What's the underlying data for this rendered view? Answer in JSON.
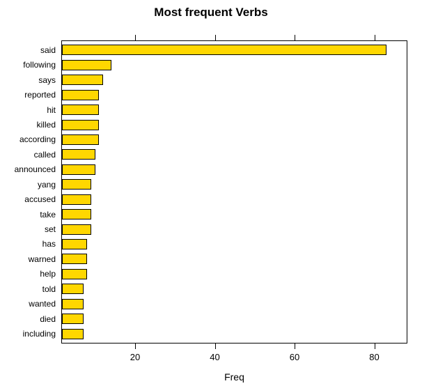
{
  "chart_data": {
    "type": "bar",
    "orientation": "horizontal",
    "title": "Most frequent Verbs",
    "xlabel": "Freq",
    "ylabel": "",
    "categories": [
      "said",
      "following",
      "says",
      "reported",
      "hit",
      "killed",
      "according",
      "called",
      "announced",
      "yang",
      "accused",
      "take",
      "set",
      "has",
      "warned",
      "help",
      "told",
      "wanted",
      "died",
      "including"
    ],
    "values": [
      83,
      14,
      12,
      11,
      11,
      11,
      11,
      10,
      10,
      9,
      9,
      9,
      9,
      8,
      8,
      8,
      7,
      7,
      7,
      7
    ],
    "x_ticks": [
      20,
      40,
      60,
      80
    ],
    "xlim": [
      0,
      88
    ],
    "grid": false,
    "legend": false,
    "bar_color": "#FFD700",
    "bar_border_color": "#000000",
    "text_color": "#000000",
    "background": "#FFFFFF"
  }
}
